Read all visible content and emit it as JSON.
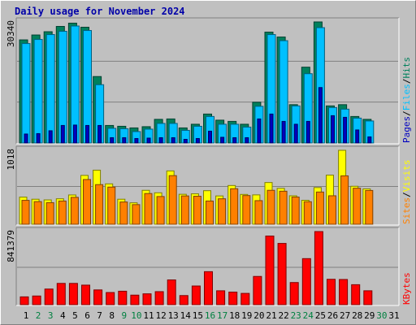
{
  "title": "Daily usage for November 2024",
  "colors": {
    "hits": "#00805c",
    "files": "#00c0ff",
    "pages": "#0000c0",
    "visits": "#ffff00",
    "sites": "#ff8000",
    "kbytes": "#ff0000",
    "weekday_label": "#000000",
    "weekend_label": "#008040",
    "panel_bg": "#c0c0c0",
    "grid": "#808080"
  },
  "chart_data": [
    {
      "type": "bar",
      "panel": "hits-files-pages",
      "categories": [
        "1",
        "2",
        "3",
        "4",
        "5",
        "6",
        "7",
        "8",
        "9",
        "10",
        "11",
        "12",
        "13",
        "14",
        "15",
        "16",
        "17",
        "18",
        "19",
        "20",
        "21",
        "22",
        "23",
        "24",
        "25",
        "26",
        "27",
        "28",
        "29",
        "30",
        "31"
      ],
      "y_axis_max_label": "30340",
      "right_labels": [
        "Pages",
        "/",
        "Files",
        "/",
        "Hits"
      ],
      "series": [
        {
          "name": "Hits",
          "values": [
            25300,
            26500,
            27300,
            28600,
            29400,
            28400,
            16300,
            4300,
            4100,
            3700,
            4000,
            5800,
            5900,
            3700,
            4600,
            7100,
            5600,
            5300,
            4600,
            10000,
            27200,
            26000,
            9400,
            18600,
            29700,
            9100,
            9400,
            6500,
            5800,
            0,
            0
          ]
        },
        {
          "name": "Files",
          "values": [
            24400,
            25400,
            26600,
            27400,
            28700,
            27600,
            14300,
            3600,
            3500,
            2800,
            3400,
            4800,
            4800,
            3100,
            4100,
            6500,
            4600,
            4600,
            3900,
            9000,
            26600,
            25100,
            9100,
            17000,
            28300,
            8700,
            8300,
            6100,
            5400,
            0,
            0
          ]
        },
        {
          "name": "Pages",
          "values": [
            2200,
            2300,
            3000,
            4300,
            4400,
            4300,
            4300,
            1300,
            1300,
            1100,
            1200,
            1300,
            1300,
            900,
            1100,
            2900,
            1400,
            1300,
            1300,
            5900,
            7100,
            5300,
            4600,
            5300,
            13600,
            6700,
            6300,
            3200,
            1500,
            0,
            0
          ]
        }
      ]
    },
    {
      "type": "bar",
      "panel": "visits-sites",
      "categories": [
        "1",
        "2",
        "3",
        "4",
        "5",
        "6",
        "7",
        "8",
        "9",
        "10",
        "11",
        "12",
        "13",
        "14",
        "15",
        "16",
        "17",
        "18",
        "19",
        "20",
        "21",
        "22",
        "23",
        "24",
        "25",
        "26",
        "27",
        "28",
        "29",
        "30",
        "31"
      ],
      "y_axis_max_label": "1018",
      "right_labels": [
        "Sites",
        "/",
        "Visits"
      ],
      "series": [
        {
          "name": "Visits",
          "values": [
            362,
            334,
            325,
            340,
            391,
            652,
            722,
            539,
            334,
            286,
            453,
            420,
            712,
            400,
            406,
            448,
            378,
            517,
            398,
            392,
            557,
            479,
            380,
            320,
            490,
            656,
            987,
            507,
            472,
            0,
            0
          ]
        },
        {
          "name": "Sites",
          "values": [
            319,
            302,
            288,
            310,
            359,
            597,
            529,
            496,
            297,
            262,
            410,
            370,
            649,
            378,
            374,
            310,
            340,
            474,
            383,
            315,
            453,
            441,
            363,
            301,
            430,
            380,
            646,
            481,
            451,
            0,
            0
          ]
        }
      ]
    },
    {
      "type": "bar",
      "panel": "kbytes",
      "categories": [
        "1",
        "2",
        "3",
        "4",
        "5",
        "6",
        "7",
        "8",
        "9",
        "10",
        "11",
        "12",
        "13",
        "14",
        "15",
        "16",
        "17",
        "18",
        "19",
        "20",
        "21",
        "22",
        "23",
        "24",
        "25",
        "26",
        "27",
        "28",
        "29",
        "30",
        "31"
      ],
      "y_axis_max_label": "841379",
      "right_labels": [
        "KBytes"
      ],
      "series": [
        {
          "name": "KBytes",
          "values": [
            90000,
            100000,
            180000,
            245000,
            245000,
            225000,
            170000,
            140000,
            155000,
            110000,
            125000,
            150000,
            285000,
            105000,
            215000,
            380000,
            160000,
            145000,
            130000,
            325000,
            790000,
            705000,
            255000,
            530000,
            841379,
            292000,
            290000,
            230000,
            160000,
            0,
            0
          ]
        }
      ]
    }
  ],
  "x_axis": {
    "labels": [
      "1",
      "2",
      "3",
      "4",
      "5",
      "6",
      "7",
      "8",
      "9",
      "10",
      "11",
      "12",
      "13",
      "14",
      "15",
      "16",
      "17",
      "18",
      "19",
      "20",
      "21",
      "22",
      "23",
      "24",
      "25",
      "26",
      "27",
      "28",
      "29",
      "30",
      "31"
    ],
    "weekend_days": [
      "2",
      "3",
      "9",
      "10",
      "16",
      "17",
      "23",
      "24",
      "30"
    ],
    "highlight_day": "31"
  }
}
